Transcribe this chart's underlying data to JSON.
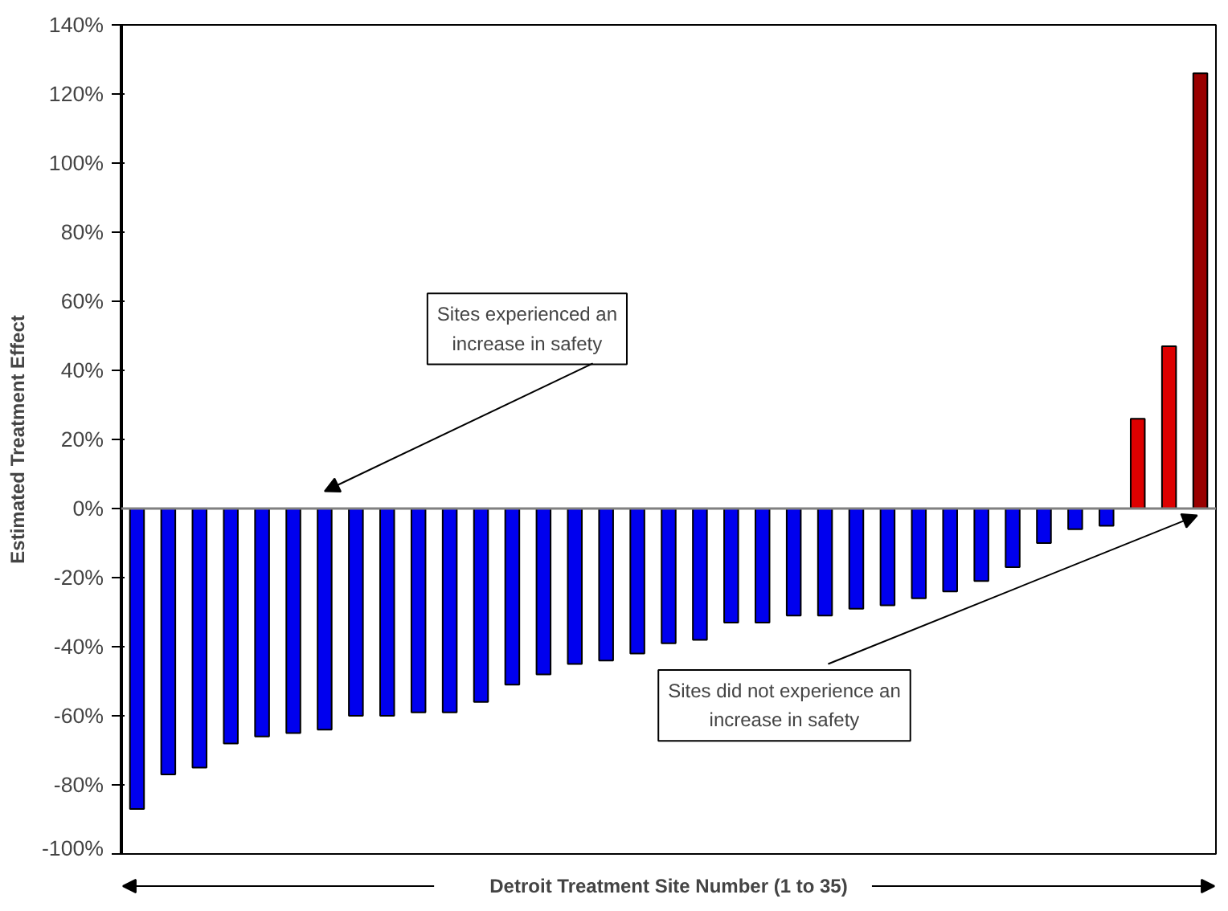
{
  "chart_data": {
    "type": "bar",
    "ylabel": "Estimated Treatment Effect",
    "xlabel": "Detroit Treatment Site Number (1 to 35)",
    "categories": [
      null,
      null,
      null,
      null,
      null,
      null,
      null,
      null,
      null,
      null,
      null,
      null,
      null,
      null,
      null,
      null,
      null,
      null,
      null,
      null,
      null,
      null,
      null,
      null,
      null,
      null,
      null,
      null,
      null,
      null,
      null,
      null,
      null,
      null,
      null
    ],
    "values": [
      -87,
      -77,
      -75,
      -68,
      -66,
      -65,
      -64,
      -60,
      -60,
      -59,
      -59,
      -56,
      -51,
      -48,
      -45,
      -44,
      -42,
      -39,
      -38,
      -33,
      -33,
      -31,
      -31,
      -29,
      -28,
      -26,
      -24,
      -21,
      -17,
      -10,
      -6,
      -5,
      26,
      47,
      126
    ],
    "colors": [
      "#0000ee",
      "#0000ee",
      "#0000ee",
      "#0000ee",
      "#0000ee",
      "#0000ee",
      "#0000ee",
      "#0000ee",
      "#0000ee",
      "#0000ee",
      "#0000ee",
      "#0000ee",
      "#0000ee",
      "#0000ee",
      "#0000ee",
      "#0000ee",
      "#0000ee",
      "#0000ee",
      "#0000ee",
      "#0000ee",
      "#0000ee",
      "#0000ee",
      "#0000ee",
      "#0000ee",
      "#0000ee",
      "#0000ee",
      "#0000ee",
      "#0000ee",
      "#0000ee",
      "#0000ee",
      "#0000ee",
      "#0000ee",
      "#dd0000",
      "#dd0000",
      "#990000"
    ],
    "ylim": [
      -100,
      140
    ],
    "yticks": [
      {
        "value": -100,
        "label": "-100%"
      },
      {
        "value": -80,
        "label": "-80%"
      },
      {
        "value": -60,
        "label": "-60%"
      },
      {
        "value": -40,
        "label": "-40%"
      },
      {
        "value": -20,
        "label": "-20%"
      },
      {
        "value": 0,
        "label": "0%"
      },
      {
        "value": 20,
        "label": "20%"
      },
      {
        "value": 40,
        "label": "40%"
      },
      {
        "value": 60,
        "label": "60%"
      },
      {
        "value": 80,
        "label": "80%"
      },
      {
        "value": 100,
        "label": "100%"
      },
      {
        "value": 120,
        "label": "120%"
      },
      {
        "value": 140,
        "label": "140%"
      }
    ],
    "tick_labels": "y",
    "grid": false,
    "ref_lines": [
      {
        "axis": "y",
        "value": 0,
        "color": "#808080"
      }
    ],
    "annotations": [
      "Sites experienced an increase in safety",
      "Sites did not experience an increase in safety"
    ]
  }
}
